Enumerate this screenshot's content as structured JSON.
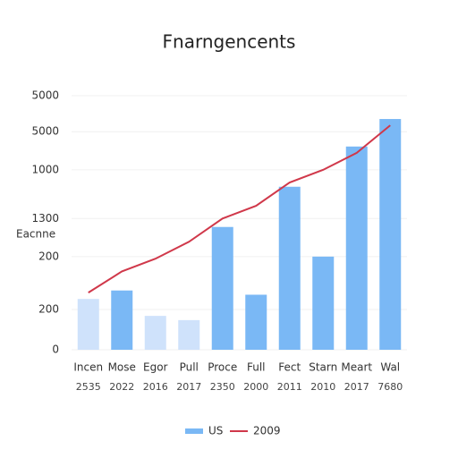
{
  "chart_data": {
    "type": "bar_line",
    "title": "Fnarngencents",
    "ylabel": "Eacnne",
    "categories": [
      "Incen",
      "Mose",
      "Egor",
      "Pull",
      "Proce",
      "Full",
      "Fect",
      "Starn",
      "Meart",
      "Wal"
    ],
    "sublabels": [
      "2535",
      "2022",
      "2016",
      "2017",
      "2350",
      "2000",
      "2011",
      "2010",
      "2017",
      "7680"
    ],
    "series": [
      {
        "name": "US",
        "type": "bar",
        "color": "#7ab8f5",
        "colors": [
          "#cfe2fb",
          "#7ab8f5",
          "#cfe2fb",
          "#cfe2fb",
          "#7ab8f5",
          "#7ab8f5",
          "#7ab8f5",
          "#7ab8f5",
          "#7ab8f5",
          "#7ab8f5"
        ],
        "values": [
          1200,
          1400,
          800,
          700,
          2900,
          1300,
          3850,
          2200,
          4800,
          5450
        ]
      },
      {
        "name": "2009",
        "type": "line",
        "color": "#d0384a",
        "values": [
          1350,
          1850,
          2150,
          2550,
          3100,
          3400,
          3950,
          4250,
          4650,
          5300
        ]
      }
    ],
    "ylim": [
      0,
      6000
    ],
    "yticks": [
      0,
      {
        "value": 950,
        "label": "200"
      },
      {
        "value": 2200,
        "label": "200"
      },
      {
        "value": 3100,
        "label": "1300"
      },
      {
        "value": 4250,
        "label": "1000"
      },
      {
        "value": 5150,
        "label": "5000"
      },
      {
        "value": 6000,
        "label": "5000"
      }
    ],
    "grid": true,
    "legend": "bottom"
  }
}
